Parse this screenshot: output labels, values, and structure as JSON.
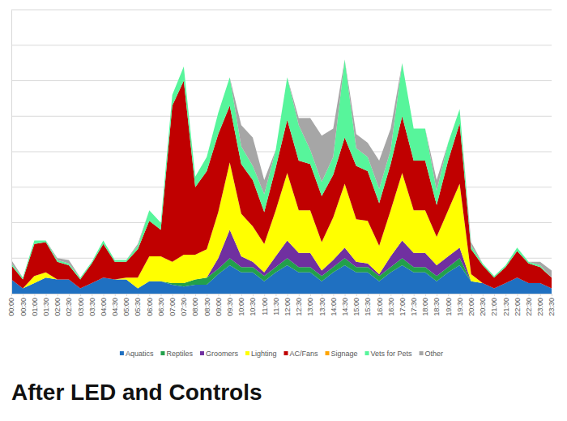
{
  "chart_data": {
    "type": "area",
    "title": "After LED and Controls",
    "stacked": true,
    "grid": true,
    "legend": "bottom",
    "tick_labels": "x",
    "ylim": [
      0,
      8
    ],
    "yticks": [
      0,
      1,
      2,
      3,
      4,
      5,
      6,
      7,
      8
    ],
    "categories": [
      "00:00",
      "00:30",
      "01:00",
      "01:30",
      "02:00",
      "02:30",
      "03:00",
      "03:30",
      "04:00",
      "04:30",
      "05:00",
      "05:30",
      "06:00",
      "06:30",
      "07:00",
      "07:30",
      "08:00",
      "08:30",
      "09:00",
      "09:30",
      "10:00",
      "10:30",
      "11:00",
      "11:30",
      "12:00",
      "12:30",
      "13:00",
      "13:30",
      "14:00",
      "14:30",
      "15:00",
      "15:30",
      "16:00",
      "16:30",
      "17:00",
      "17:30",
      "18:00",
      "18:30",
      "19:00",
      "19:30",
      "20:00",
      "20:30",
      "21:00",
      "21:30",
      "22:00",
      "22:30",
      "23:00",
      "23:30"
    ],
    "series": [
      {
        "name": "Aquatics",
        "color": "#1f70c1",
        "values": [
          0.4,
          0.15,
          0.3,
          0.45,
          0.4,
          0.4,
          0.15,
          0.3,
          0.45,
          0.4,
          0.4,
          0.15,
          0.35,
          0.35,
          0.25,
          0.2,
          0.25,
          0.25,
          0.55,
          0.8,
          0.6,
          0.6,
          0.35,
          0.6,
          0.8,
          0.6,
          0.6,
          0.35,
          0.6,
          0.8,
          0.6,
          0.6,
          0.35,
          0.6,
          0.8,
          0.6,
          0.6,
          0.35,
          0.6,
          0.8,
          0.35,
          0.3,
          0.15,
          0.3,
          0.45,
          0.3,
          0.3,
          0.15
        ]
      },
      {
        "name": "Reptiles",
        "color": "#22a04b",
        "values": [
          0,
          0,
          0,
          0,
          0,
          0,
          0,
          0,
          0,
          0,
          0,
          0,
          0,
          0,
          0.05,
          0.1,
          0.15,
          0.2,
          0.15,
          0.2,
          0.15,
          0.15,
          0.15,
          0.15,
          0.2,
          0.15,
          0.15,
          0.15,
          0.15,
          0.2,
          0.15,
          0.15,
          0.15,
          0.15,
          0.2,
          0.15,
          0.15,
          0.15,
          0.15,
          0.2,
          0,
          0,
          0,
          0,
          0,
          0,
          0,
          0
        ]
      },
      {
        "name": "Groomers",
        "color": "#7030a0",
        "values": [
          0,
          0,
          0,
          0,
          0,
          0,
          0,
          0,
          0,
          0,
          0,
          0,
          0,
          0,
          0,
          0,
          0,
          0,
          0.3,
          0.8,
          0.3,
          0.15,
          0.1,
          0.3,
          0.5,
          0.4,
          0.4,
          0.15,
          0.2,
          0.3,
          0.15,
          0.1,
          0.05,
          0.3,
          0.5,
          0.4,
          0.4,
          0.3,
          0.3,
          0.3,
          0,
          0,
          0,
          0,
          0,
          0,
          0,
          0
        ]
      },
      {
        "name": "Lighting",
        "color": "#ffff00",
        "values": [
          0,
          0,
          0.2,
          0.15,
          0,
          0,
          0,
          0,
          0,
          0,
          0.05,
          0.3,
          0.7,
          0.7,
          0.6,
          0.8,
          0.7,
          0.8,
          1.3,
          1.9,
          1.2,
          1.0,
          0.8,
          1.3,
          1.9,
          1.2,
          1.2,
          0.8,
          1.2,
          1.8,
          1.2,
          1.2,
          0.8,
          1.3,
          1.9,
          1.2,
          1.2,
          0.8,
          1.3,
          1.8,
          0.2,
          0,
          0,
          0,
          0,
          0,
          0,
          0
        ]
      },
      {
        "name": "AC/Fans",
        "color": "#c00000",
        "values": [
          0.4,
          0.25,
          0.9,
          0.85,
          0.5,
          0.4,
          0.25,
          0.55,
          0.95,
          0.5,
          0.45,
          0.8,
          1.0,
          0.75,
          4.4,
          4.9,
          1.9,
          2.2,
          2.2,
          1.6,
          1.4,
          1.3,
          0.9,
          1.2,
          1.5,
          1.4,
          1.3,
          1.3,
          1.2,
          1.3,
          1.5,
          1.4,
          1.2,
          1.3,
          1.6,
          1.4,
          1.4,
          0.9,
          1.4,
          1.7,
          0.7,
          0.5,
          0.3,
          0.45,
          0.75,
          0.55,
          0.45,
          0.3
        ]
      },
      {
        "name": "Signage",
        "color": "#ffa500",
        "values": [
          0,
          0,
          0,
          0,
          0,
          0,
          0,
          0,
          0,
          0,
          0,
          0,
          0,
          0,
          0,
          0,
          0,
          0,
          0,
          0,
          0,
          0,
          0,
          0,
          0,
          0,
          0,
          0,
          0,
          0,
          0,
          0,
          0,
          0,
          0,
          0,
          0,
          0,
          0,
          0,
          0,
          0,
          0,
          0,
          0,
          0,
          0,
          0
        ]
      },
      {
        "name": "Vets for Pets",
        "color": "#57f59b",
        "values": [
          0.05,
          0.05,
          0.1,
          0.05,
          0.05,
          0.05,
          0.05,
          0.05,
          0.1,
          0.05,
          0.05,
          0.1,
          0.3,
          0.2,
          0.3,
          0.4,
          0.3,
          0.4,
          0.6,
          0.8,
          0.5,
          0.4,
          0.5,
          0.5,
          1.2,
          1.0,
          0.4,
          0.4,
          0.5,
          2.2,
          0.5,
          0.4,
          0.4,
          0.4,
          1.5,
          0.9,
          0.9,
          0.4,
          0.5,
          0.4,
          0.1,
          0.05,
          0.05,
          0.05,
          0.1,
          0.05,
          0.05,
          0
        ]
      },
      {
        "name": "Other",
        "color": "#a6a6a6",
        "values": [
          0.1,
          0,
          0,
          0,
          0.05,
          0.1,
          0,
          0,
          0,
          0,
          0,
          0.05,
          0,
          0,
          0,
          0,
          0,
          0,
          0,
          0,
          0.6,
          0.8,
          0.4,
          0,
          0,
          0.2,
          0.9,
          1.3,
          0.8,
          0,
          0.4,
          0.4,
          0.8,
          0.6,
          0,
          0,
          0,
          0.3,
          0,
          0,
          0.1,
          0,
          0,
          0,
          0,
          0,
          0.1,
          0.2
        ]
      }
    ]
  }
}
